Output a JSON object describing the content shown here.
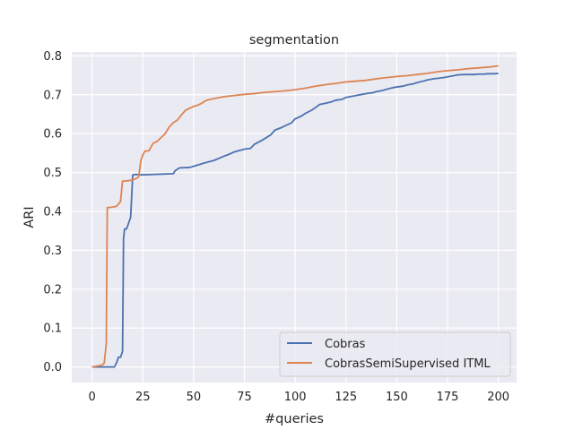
{
  "chart_data": {
    "type": "line",
    "title": "segmentation",
    "xlabel": "#queries",
    "ylabel": "ARI",
    "xlim": [
      -10,
      209
    ],
    "ylim": [
      -0.04,
      0.81
    ],
    "xticks": [
      0,
      25,
      50,
      75,
      100,
      125,
      150,
      175,
      200
    ],
    "yticks": [
      0.0,
      0.1,
      0.2,
      0.3,
      0.4,
      0.5,
      0.6,
      0.7,
      0.8
    ],
    "xtick_labels": [
      "0",
      "25",
      "50",
      "75",
      "100",
      "125",
      "150",
      "175",
      "200"
    ],
    "ytick_labels": [
      "0.0",
      "0.1",
      "0.2",
      "0.3",
      "0.4",
      "0.5",
      "0.6",
      "0.7",
      "0.8"
    ],
    "grid": true,
    "legend_position": "lower-right",
    "background_color": "#eaeaf2",
    "series": [
      {
        "name": "Cobras",
        "color": "#4c72b0",
        "x": [
          0,
          5,
          10,
          11,
          12,
          13,
          14,
          15,
          15.5,
          16,
          17,
          18,
          19,
          20,
          21,
          25,
          30,
          35,
          40,
          41,
          43,
          48,
          50,
          55,
          60,
          65,
          68,
          70,
          75,
          78,
          80,
          83,
          85,
          88,
          90,
          93,
          95,
          98,
          100,
          103,
          105,
          108,
          110,
          112,
          115,
          118,
          120,
          123,
          125,
          128,
          130,
          133,
          135,
          138,
          140,
          143,
          145,
          148,
          150,
          153,
          155,
          158,
          160,
          163,
          165,
          168,
          170,
          173,
          175,
          178,
          180,
          183,
          185,
          188,
          190,
          193,
          195,
          198,
          200
        ],
        "values": [
          0.0,
          0.0,
          0.0,
          0.0,
          0.01,
          0.025,
          0.025,
          0.04,
          0.33,
          0.355,
          0.355,
          0.37,
          0.385,
          0.493,
          0.495,
          0.494,
          0.495,
          0.496,
          0.497,
          0.505,
          0.512,
          0.513,
          0.516,
          0.524,
          0.531,
          0.542,
          0.548,
          0.553,
          0.56,
          0.562,
          0.573,
          0.581,
          0.587,
          0.597,
          0.609,
          0.615,
          0.62,
          0.627,
          0.638,
          0.645,
          0.652,
          0.66,
          0.667,
          0.675,
          0.678,
          0.682,
          0.686,
          0.688,
          0.693,
          0.696,
          0.698,
          0.701,
          0.703,
          0.705,
          0.708,
          0.711,
          0.714,
          0.718,
          0.72,
          0.722,
          0.725,
          0.728,
          0.731,
          0.735,
          0.738,
          0.741,
          0.742,
          0.744,
          0.746,
          0.749,
          0.751,
          0.752,
          0.752,
          0.752,
          0.753,
          0.753,
          0.754,
          0.754,
          0.755
        ]
      },
      {
        "name": "CobrasSemiSupervised ITML",
        "color": "#dd8452",
        "x": [
          0,
          3,
          5,
          6,
          7,
          7.5,
          8,
          10,
          12,
          14,
          15,
          16,
          18,
          20,
          21,
          22,
          23,
          24,
          25,
          26,
          28,
          30,
          32,
          34,
          36,
          38,
          40,
          42,
          44,
          46,
          48,
          50,
          52,
          54,
          56,
          58,
          60,
          65,
          70,
          75,
          80,
          85,
          90,
          95,
          100,
          105,
          110,
          115,
          120,
          125,
          130,
          135,
          140,
          145,
          150,
          155,
          160,
          165,
          170,
          175,
          180,
          185,
          190,
          195,
          200
        ],
        "values": [
          0.0,
          0.003,
          0.005,
          0.01,
          0.06,
          0.41,
          0.41,
          0.411,
          0.413,
          0.425,
          0.478,
          0.478,
          0.479,
          0.481,
          0.483,
          0.485,
          0.49,
          0.53,
          0.545,
          0.555,
          0.556,
          0.575,
          0.58,
          0.59,
          0.6,
          0.617,
          0.628,
          0.635,
          0.648,
          0.66,
          0.665,
          0.67,
          0.673,
          0.678,
          0.685,
          0.688,
          0.69,
          0.695,
          0.698,
          0.701,
          0.703,
          0.706,
          0.708,
          0.71,
          0.713,
          0.717,
          0.722,
          0.726,
          0.729,
          0.733,
          0.735,
          0.737,
          0.741,
          0.744,
          0.747,
          0.749,
          0.752,
          0.755,
          0.759,
          0.762,
          0.764,
          0.767,
          0.769,
          0.771,
          0.774
        ]
      }
    ]
  }
}
